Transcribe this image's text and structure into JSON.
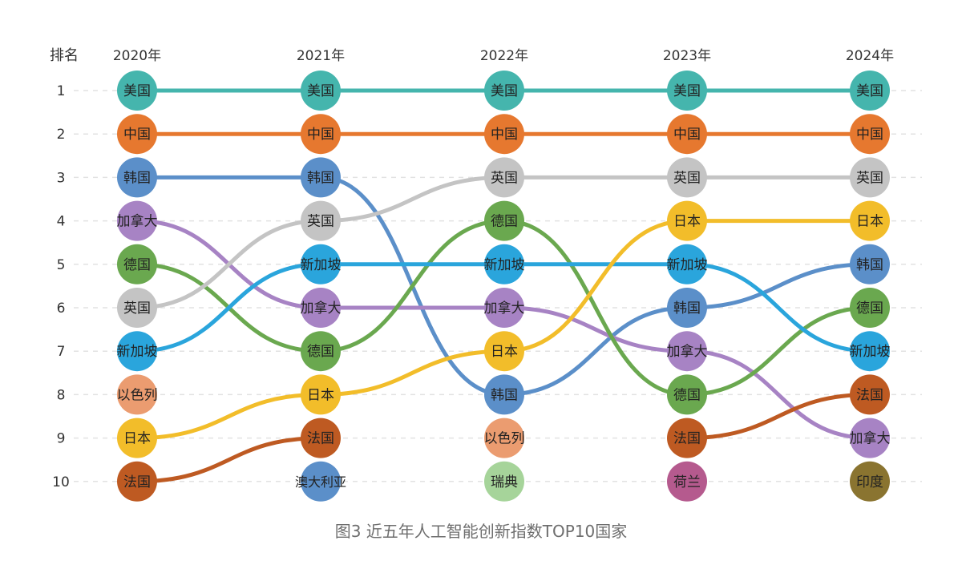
{
  "caption": "图3 近五年人工智能创新指数TOP10国家",
  "chart_data": {
    "type": "bump",
    "rank_header": "排名",
    "years": [
      "2020年",
      "2021年",
      "2022年",
      "2023年",
      "2024年"
    ],
    "ranks": [
      "1",
      "2",
      "3",
      "4",
      "5",
      "6",
      "7",
      "8",
      "9",
      "10"
    ],
    "columns": [
      [
        "美国",
        "中国",
        "韩国",
        "加拿大",
        "德国",
        "英国",
        "新加坡",
        "以色列",
        "日本",
        "法国"
      ],
      [
        "美国",
        "中国",
        "韩国",
        "英国",
        "新加坡",
        "加拿大",
        "德国",
        "日本",
        "法国",
        "澳大利亚"
      ],
      [
        "美国",
        "中国",
        "英国",
        "德国",
        "新加坡",
        "加拿大",
        "日本",
        "韩国",
        "以色列",
        "瑞典"
      ],
      [
        "美国",
        "中国",
        "英国",
        "日本",
        "新加坡",
        "韩国",
        "加拿大",
        "德国",
        "法国",
        "荷兰"
      ],
      [
        "美国",
        "中国",
        "英国",
        "日本",
        "韩国",
        "德国",
        "新加坡",
        "法国",
        "加拿大",
        "印度"
      ]
    ],
    "colors": {
      "美国": "#45b5ad",
      "中国": "#e6782f",
      "韩国": "#5b8fc9",
      "加拿大": "#a783c4",
      "德国": "#6aa84f",
      "英国": "#c4c4c4",
      "新加坡": "#2aa5dc",
      "以色列": "#eb9c70",
      "日本": "#f2bd2a",
      "法国": "#be5a22",
      "澳大利亚": "#5b8fc9",
      "瑞典": "#a6d49a",
      "荷兰": "#b55a8e",
      "印度": "#8a7430"
    },
    "grid": true
  }
}
